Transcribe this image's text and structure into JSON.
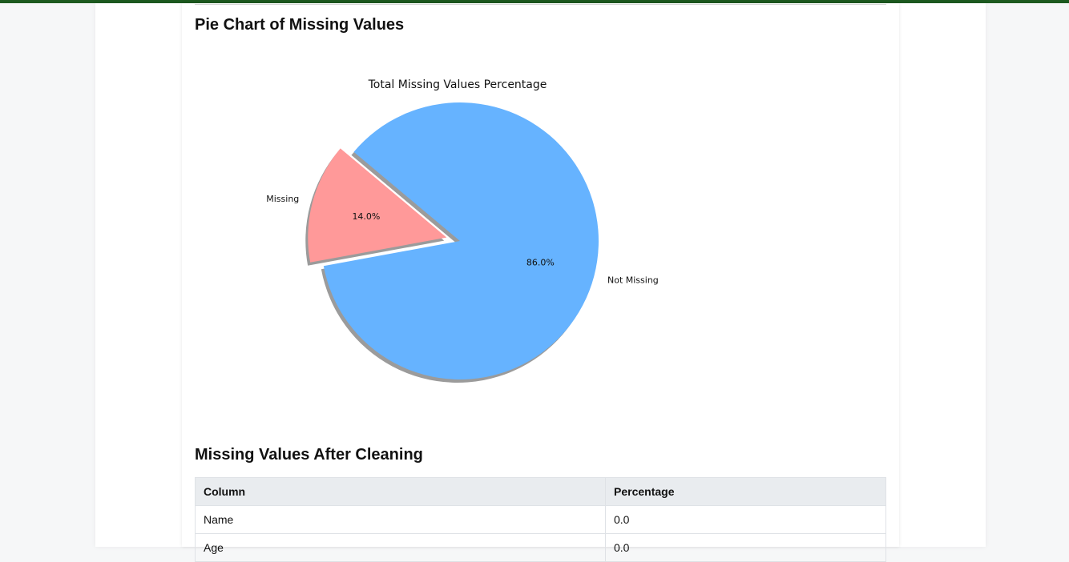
{
  "sections": {
    "pie_heading": "Pie Chart of Missing Values",
    "table_heading": "Missing Values After Cleaning"
  },
  "chart_data": {
    "type": "pie",
    "title": "Total Missing Values Percentage",
    "slices": [
      {
        "label": "Missing",
        "value": 14.0,
        "pct_label": "14.0%",
        "color": "#ff9999",
        "exploded": true
      },
      {
        "label": "Not Missing",
        "value": 86.0,
        "pct_label": "86.0%",
        "color": "#66b3ff",
        "exploded": false
      }
    ],
    "shadow": true,
    "start_angle": 140
  },
  "table": {
    "headers": [
      "Column",
      "Percentage"
    ],
    "rows": [
      [
        "Name",
        "0.0"
      ],
      [
        "Age",
        "0.0"
      ]
    ]
  }
}
